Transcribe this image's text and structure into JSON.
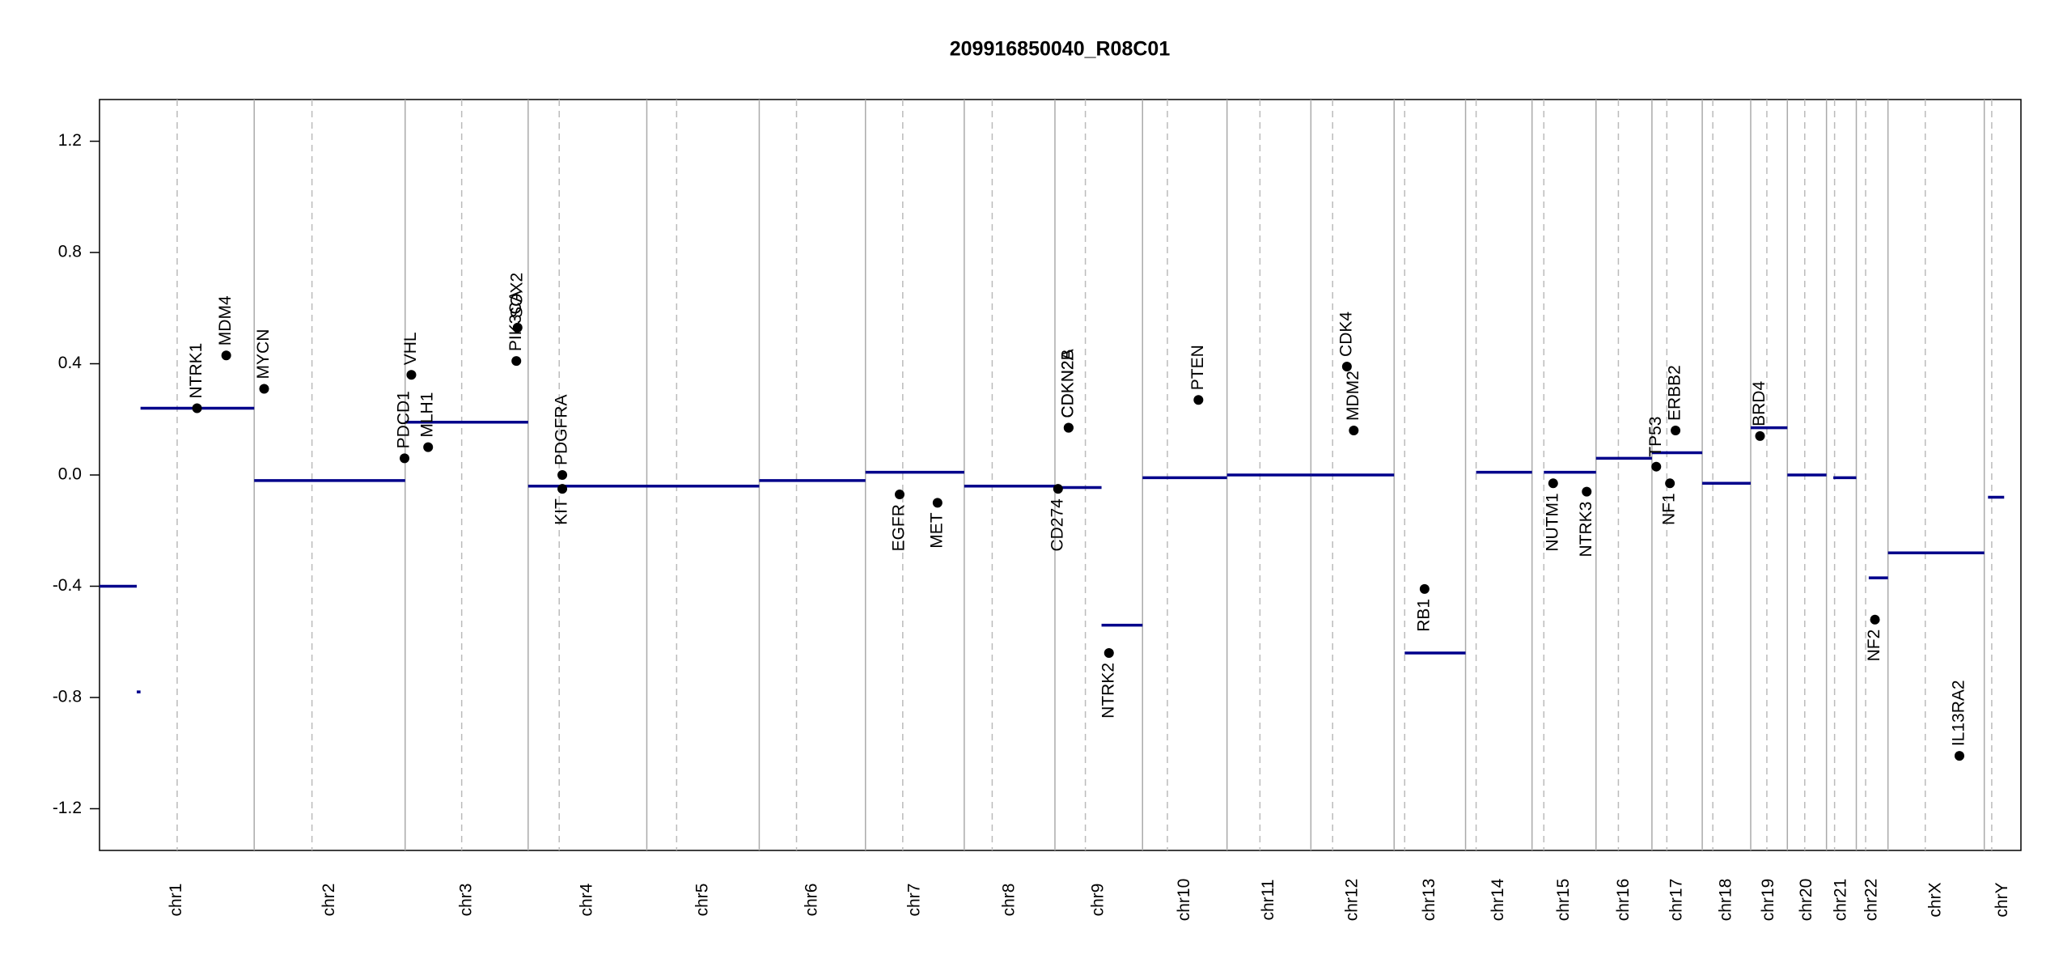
{
  "chart_data": {
    "type": "copy-number",
    "title": "209916850040_R08C01",
    "ylim": [
      -1.35,
      1.35
    ],
    "yticks": [
      -1.2,
      -0.8,
      -0.4,
      {
        "value": 0,
        "label": "0.0"
      },
      0.4,
      0.8,
      1.2
    ],
    "chromosomes": {
      "names": [
        "chr1",
        "chr2",
        "chr3",
        "chr4",
        "chr5",
        "chr6",
        "chr7",
        "chr8",
        "chr9",
        "chr10",
        "chr11",
        "chr12",
        "chr13",
        "chr14",
        "chr15",
        "chr16",
        "chr17",
        "chr18",
        "chr19",
        "chr20",
        "chr21",
        "chr22",
        "chrX",
        "chrY"
      ],
      "lengths": [
        249,
        243,
        198,
        191,
        181,
        171,
        159,
        146,
        141,
        136,
        135,
        134,
        115,
        107,
        103,
        90,
        81,
        78,
        59,
        63,
        48,
        51,
        155,
        59
      ],
      "centromeres": [
        125,
        93,
        91,
        50,
        48,
        60,
        60,
        45,
        49,
        40,
        53,
        35,
        17,
        17,
        19,
        36,
        24,
        17,
        26,
        28,
        13,
        15,
        60,
        12
      ]
    },
    "segments": {
      "color": "#00008b",
      "chromosome": [
        0,
        0,
        0,
        1,
        2,
        3,
        4,
        5,
        6,
        7,
        8,
        8,
        9,
        10,
        11,
        12,
        13,
        14,
        15,
        16,
        17,
        18,
        19,
        20,
        21,
        22,
        23
      ],
      "start": [
        0,
        60,
        66,
        0,
        0,
        0,
        0,
        0,
        0,
        0,
        0,
        75,
        0,
        0,
        0,
        17,
        17,
        19,
        0,
        0,
        0,
        0,
        0,
        11,
        20,
        0,
        6
      ],
      "end": [
        60,
        66,
        249,
        243,
        198,
        191,
        181,
        171,
        159,
        146,
        75,
        141,
        136,
        135,
        134,
        115,
        107,
        103,
        90,
        81,
        78,
        59,
        63,
        48,
        51,
        155,
        32
      ],
      "values": [
        -0.4,
        -0.78,
        0.24,
        -0.02,
        0.19,
        -0.04,
        -0.04,
        -0.02,
        0.01,
        -0.04,
        -0.045,
        -0.54,
        -0.01,
        0.0,
        0.0,
        -0.64,
        0.01,
        0.01,
        0.06,
        0.08,
        -0.03,
        0.17,
        0.0,
        -0.01,
        -0.37,
        -0.28,
        -0.08
      ]
    },
    "genes": {
      "color": "#000000",
      "names": [
        "NTRK1",
        "MDM4",
        "MYCN",
        "PDCD1",
        "VHL",
        "MLH1",
        "PIK3CA",
        "SOX2",
        "PDGFRA",
        "KIT",
        "EGFR",
        "MET",
        "CD274",
        "CDKN2A",
        "CDKN2B",
        "NTRK2",
        "PTEN",
        "CDK4",
        "MDM2",
        "RB1",
        "NUTM1",
        "NTRK3",
        "TP53",
        "NF1",
        "ERBB2",
        "BRD4",
        "NF2",
        "IL13RA2"
      ],
      "chromosome": [
        0,
        0,
        1,
        1,
        2,
        2,
        2,
        2,
        3,
        3,
        6,
        6,
        8,
        8,
        8,
        8,
        9,
        11,
        11,
        12,
        14,
        14,
        16,
        16,
        16,
        18,
        21,
        22
      ],
      "position": [
        157,
        204,
        16,
        242,
        10,
        37,
        179,
        181,
        55,
        55,
        55,
        116,
        5,
        22,
        22,
        87,
        90,
        58,
        69,
        49,
        34,
        88,
        7,
        29,
        38,
        15,
        30,
        115
      ],
      "values": [
        0.24,
        0.43,
        0.31,
        0.06,
        0.36,
        0.1,
        0.41,
        0.53,
        0.0,
        -0.05,
        -0.07,
        -0.1,
        -0.05,
        0.17,
        0.17,
        -0.64,
        0.27,
        0.39,
        0.16,
        -0.41,
        -0.03,
        -0.06,
        0.03,
        -0.03,
        0.16,
        0.14,
        -0.52,
        -1.01
      ]
    }
  }
}
